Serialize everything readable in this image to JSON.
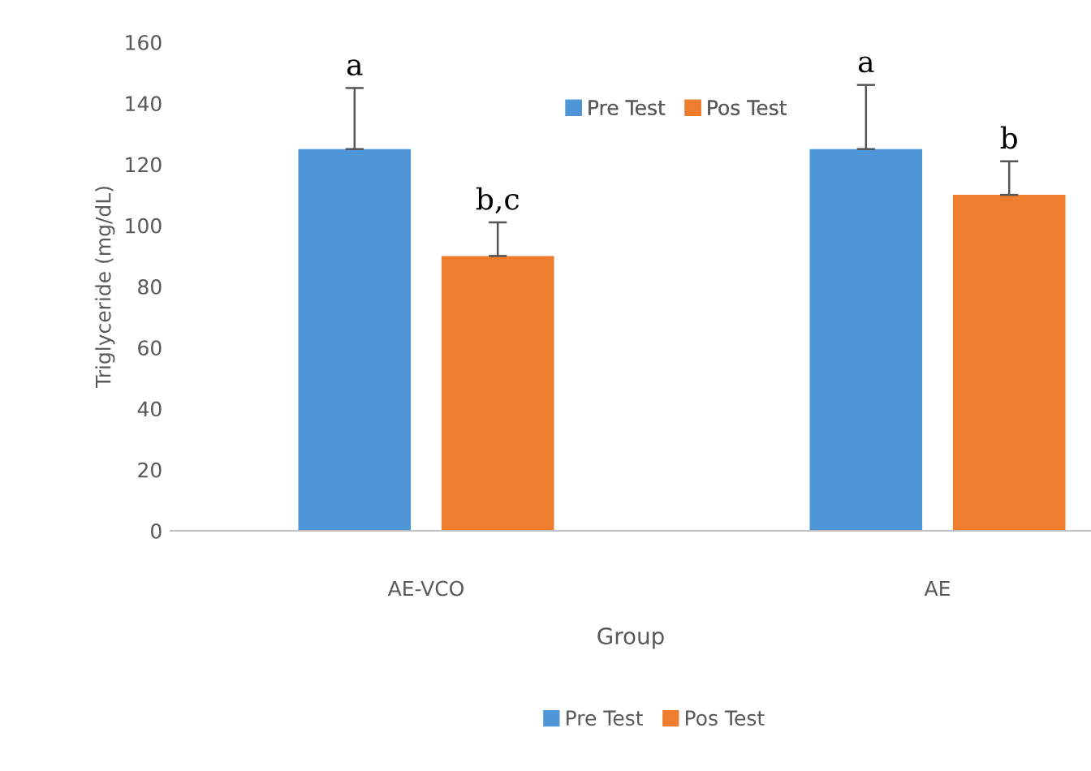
{
  "chart_data": {
    "type": "bar",
    "xlabel": "Group",
    "ylabel": "Triglyceride (mg/dL)",
    "categories": [
      "AE-VCO",
      "AE"
    ],
    "series": [
      {
        "name": "Pre Test",
        "color": "#4e96d8",
        "values": [
          125,
          125
        ],
        "errors": [
          20,
          21
        ]
      },
      {
        "name": "Pos Test",
        "color": "#ee7d2e",
        "values": [
          90,
          110
        ],
        "errors": [
          11,
          11
        ]
      }
    ],
    "ylim": [
      0,
      160
    ],
    "yticks": [
      0,
      20,
      40,
      60,
      80,
      100,
      120,
      140,
      160
    ],
    "grid": false,
    "legend": "top",
    "annotations": [
      "a",
      "b,c",
      "a",
      "b"
    ]
  }
}
